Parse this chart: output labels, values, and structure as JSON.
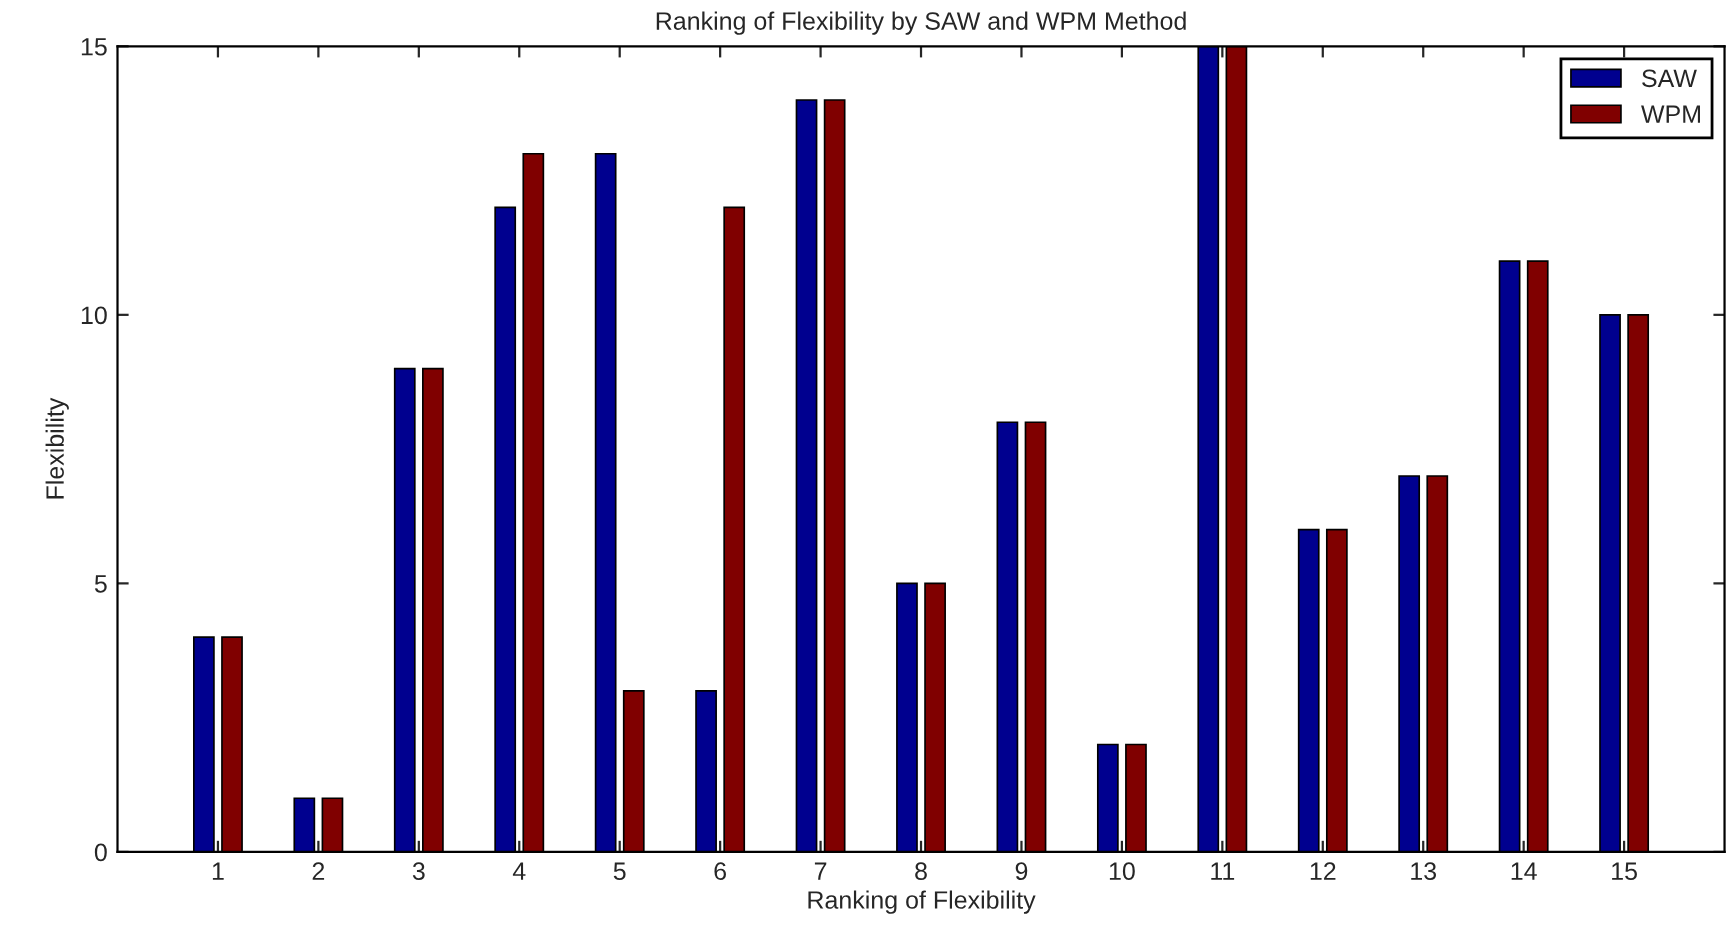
{
  "chart_data": {
    "type": "bar",
    "title": "Ranking of Flexibility by SAW and WPM Method",
    "xlabel": "Ranking of Flexibility",
    "ylabel": "Flexibility",
    "categories": [
      "1",
      "2",
      "3",
      "4",
      "5",
      "6",
      "7",
      "8",
      "9",
      "10",
      "11",
      "12",
      "13",
      "14",
      "15"
    ],
    "series": [
      {
        "name": "SAW",
        "color": "#00008f",
        "values": [
          4,
          1,
          9,
          12,
          13,
          3,
          14,
          5,
          8,
          2,
          15,
          6,
          7,
          11,
          10
        ]
      },
      {
        "name": "WPM",
        "color": "#800000",
        "values": [
          4,
          1,
          9,
          13,
          3,
          12,
          14,
          5,
          8,
          2,
          15,
          6,
          7,
          11,
          10
        ]
      }
    ],
    "ylim": [
      0,
      15
    ],
    "yticks": [
      0,
      5,
      10,
      15
    ],
    "grid": false,
    "legend": "top right"
  }
}
